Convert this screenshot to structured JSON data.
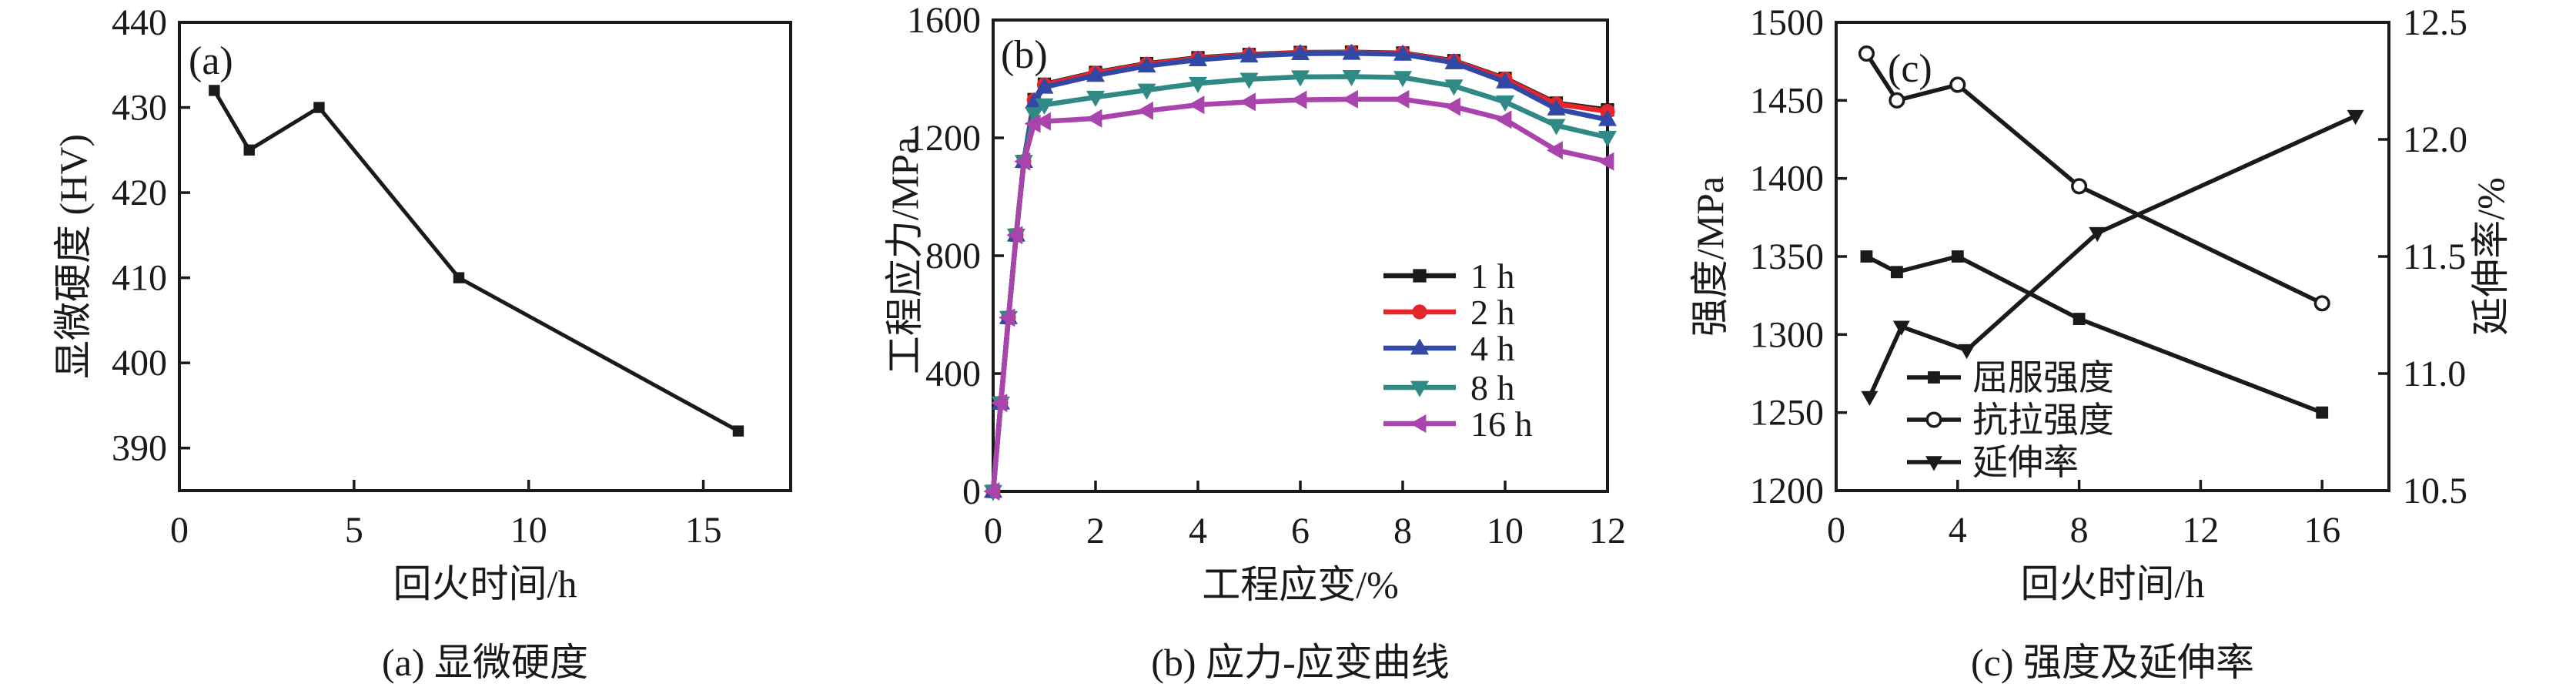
{
  "figure_background": "#ffffff",
  "line_color_black": "#1a1a1a",
  "chart_data": [
    {
      "id": "a",
      "type": "line",
      "panel_label": "(a)",
      "caption": "(a) 显微硬度",
      "xlabel": "回火时间/h",
      "ylabel": "显微硬度 (HV)",
      "xlim": [
        0,
        17.5
      ],
      "ylim": [
        385,
        440
      ],
      "xticks": [
        "0",
        "5",
        "10",
        "15"
      ],
      "yticks": [
        "390",
        "400",
        "410",
        "420",
        "430",
        "440"
      ],
      "grid": false,
      "legend_position": "none",
      "series": [
        {
          "name": "显微硬度",
          "color": "#1a1a1a",
          "marker": "square",
          "x": [
            1,
            2,
            4,
            8,
            16
          ],
          "y": [
            432,
            425,
            430,
            410,
            392
          ]
        }
      ]
    },
    {
      "id": "b",
      "type": "line",
      "panel_label": "(b)",
      "caption": "(b) 应力-应变曲线",
      "xlabel": "工程应变/%",
      "ylabel": "工程应力/MPa",
      "xlim": [
        0,
        12
      ],
      "ylim": [
        0,
        1600
      ],
      "xticks": [
        "0",
        "2",
        "4",
        "6",
        "8",
        "10",
        "12"
      ],
      "yticks": [
        "0",
        "400",
        "800",
        "1200",
        "1600"
      ],
      "grid": false,
      "legend_position": "inside-right-middle",
      "series": [
        {
          "name": "1 h",
          "color": "#1a1a1a",
          "marker": "square",
          "x": [
            0,
            0.15,
            0.3,
            0.45,
            0.6,
            0.8,
            1,
            2,
            3,
            4,
            5,
            6,
            7,
            8,
            9,
            10,
            11,
            12
          ],
          "y": [
            0,
            300,
            590,
            870,
            1120,
            1330,
            1382,
            1422,
            1452,
            1472,
            1483,
            1490,
            1491,
            1488,
            1462,
            1402,
            1318,
            1295
          ]
        },
        {
          "name": "2 h",
          "color": "#e4252b",
          "marker": "circle",
          "x": [
            0,
            0.15,
            0.3,
            0.45,
            0.6,
            0.8,
            1,
            2,
            3,
            4,
            5,
            6,
            7,
            8,
            9,
            10,
            11,
            12
          ],
          "y": [
            0,
            300,
            590,
            870,
            1120,
            1328,
            1380,
            1420,
            1450,
            1470,
            1482,
            1489,
            1490,
            1487,
            1460,
            1400,
            1315,
            1290
          ]
        },
        {
          "name": "4 h",
          "color": "#3148a5",
          "marker": "triangle-up",
          "x": [
            0,
            0.15,
            0.3,
            0.45,
            0.6,
            0.8,
            1,
            2,
            3,
            4,
            5,
            6,
            7,
            8,
            9,
            10,
            11,
            12
          ],
          "y": [
            0,
            300,
            590,
            870,
            1120,
            1322,
            1372,
            1412,
            1444,
            1465,
            1478,
            1486,
            1487,
            1484,
            1455,
            1390,
            1298,
            1262
          ]
        },
        {
          "name": "8 h",
          "color": "#2f8984",
          "marker": "triangle-down",
          "x": [
            0,
            0.15,
            0.3,
            0.45,
            0.6,
            0.8,
            1,
            2,
            3,
            4,
            5,
            6,
            7,
            8,
            9,
            10,
            11,
            12
          ],
          "y": [
            0,
            300,
            590,
            870,
            1120,
            1282,
            1312,
            1338,
            1362,
            1385,
            1399,
            1407,
            1408,
            1405,
            1376,
            1322,
            1242,
            1202
          ]
        },
        {
          "name": "16 h",
          "color": "#a844ac",
          "marker": "triangle-left",
          "x": [
            0,
            0.15,
            0.3,
            0.45,
            0.6,
            0.8,
            1,
            2,
            3,
            4,
            5,
            6,
            7,
            8,
            9,
            10,
            11,
            12
          ],
          "y": [
            0,
            300,
            590,
            870,
            1120,
            1248,
            1256,
            1266,
            1292,
            1312,
            1322,
            1329,
            1331,
            1331,
            1306,
            1262,
            1158,
            1120
          ]
        }
      ]
    },
    {
      "id": "c",
      "type": "line",
      "panel_label": "(c)",
      "caption": "(c) 强度及延伸率",
      "xlabel": "回火时间/h",
      "ylabel_left": "强度/MPa",
      "ylabel_right": "延伸率/%",
      "xlim": [
        0,
        18.2
      ],
      "ylim_left": [
        1200,
        1500
      ],
      "ylim_right": [
        10.5,
        12.5
      ],
      "xticks": [
        "0",
        "4",
        "8",
        "12",
        "16"
      ],
      "yticks_left": [
        "1200",
        "1250",
        "1300",
        "1350",
        "1400",
        "1450",
        "1500"
      ],
      "yticks_right": [
        "10.5",
        "11.0",
        "11.5",
        "12.0",
        "12.5"
      ],
      "grid": false,
      "legend_position": "inside-left-bottom",
      "series": [
        {
          "name": "屈服强度",
          "axis": "left",
          "color": "#1a1a1a",
          "marker": "square",
          "x": [
            1,
            2,
            4,
            8,
            16
          ],
          "y": [
            1350,
            1340,
            1350,
            1310,
            1250
          ]
        },
        {
          "name": "抗拉强度",
          "axis": "left",
          "color": "#1a1a1a",
          "marker": "circle-open",
          "x": [
            1,
            2,
            4,
            8,
            16
          ],
          "y": [
            1480,
            1450,
            1460,
            1395,
            1320
          ]
        },
        {
          "name": "延伸率",
          "axis": "right",
          "color": "#1a1a1a",
          "marker": "triangle-down",
          "x": [
            1,
            2,
            4,
            8,
            16
          ],
          "x_plot": [
            1.1,
            2.15,
            4.3,
            8.6,
            17.1
          ],
          "y": [
            10.9,
            11.2,
            11.1,
            11.6,
            12.1
          ]
        }
      ]
    }
  ]
}
